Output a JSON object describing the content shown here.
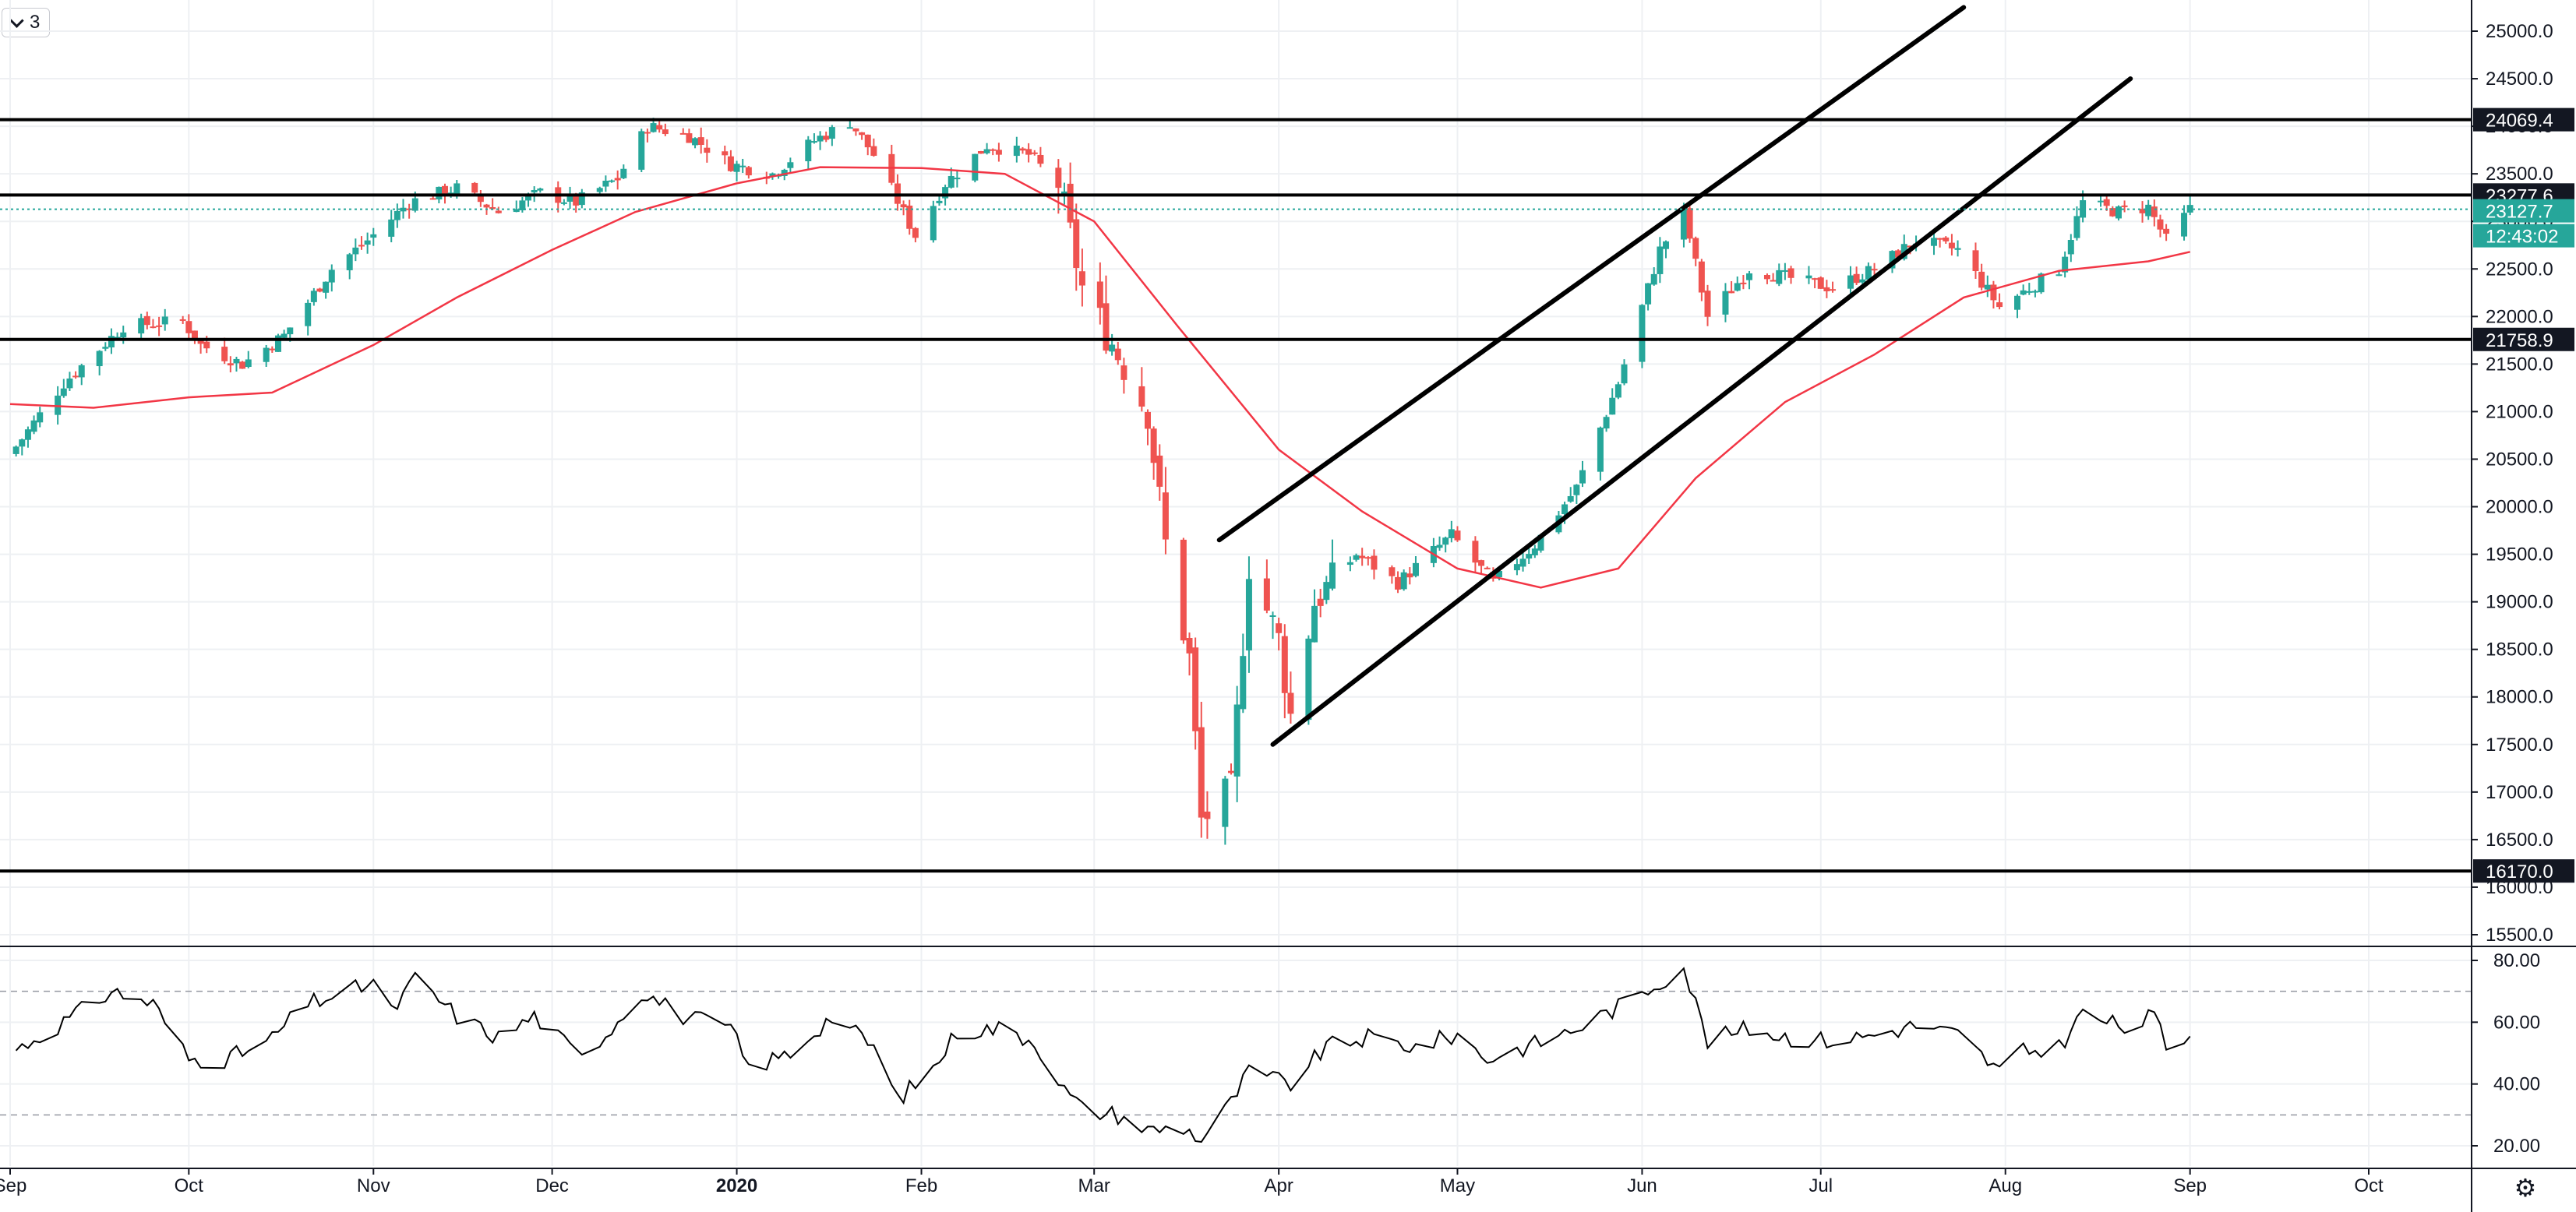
{
  "series_badge": {
    "count": "3"
  },
  "icons": {
    "collapse": "chevron-down-icon",
    "settings": "gear-icon"
  },
  "colors": {
    "up": "#26a69a",
    "down": "#ef5350",
    "ma": "#f23645",
    "rsi": "#000000",
    "current_tag": "#26a69a",
    "level_tag": "#131722"
  },
  "chart_data": [
    {
      "type": "candlestick",
      "title": "",
      "ylim": [
        15300,
        25300
      ],
      "y_ticks": [
        "25000.0",
        "24500.0",
        "24000.0",
        "23500.0",
        "23000.0",
        "22500.0",
        "22000.0",
        "21500.0",
        "21000.0",
        "20500.0",
        "20000.0",
        "19500.0",
        "19000.0",
        "18500.0",
        "18000.0",
        "17500.0",
        "17000.0",
        "16500.0",
        "16000.0",
        "15500.0"
      ],
      "x_ticks": [
        {
          "label": "Sep",
          "date": "2019-09-01"
        },
        {
          "label": "Oct",
          "date": "2019-10-01"
        },
        {
          "label": "Nov",
          "date": "2019-11-01"
        },
        {
          "label": "Dec",
          "date": "2019-12-01"
        },
        {
          "label": "2020",
          "date": "2020-01-01",
          "bold": true
        },
        {
          "label": "Feb",
          "date": "2020-02-01"
        },
        {
          "label": "Mar",
          "date": "2020-03-01"
        },
        {
          "label": "Apr",
          "date": "2020-04-01"
        },
        {
          "label": "May",
          "date": "2020-05-01"
        },
        {
          "label": "Jun",
          "date": "2020-06-01"
        },
        {
          "label": "Jul",
          "date": "2020-07-01"
        },
        {
          "label": "Aug",
          "date": "2020-08-01"
        },
        {
          "label": "Sep",
          "date": "2020-09-01"
        },
        {
          "label": "Oct",
          "date": "2020-10-01"
        }
      ],
      "price_path": [
        [
          "2019-09-01",
          20550
        ],
        [
          "2019-09-10",
          21300
        ],
        [
          "2019-09-20",
          21900
        ],
        [
          "2019-09-30",
          21950
        ],
        [
          "2019-10-03",
          21700
        ],
        [
          "2019-10-10",
          21500
        ],
        [
          "2019-10-17",
          21800
        ],
        [
          "2019-10-25",
          22500
        ],
        [
          "2019-10-31",
          22800
        ],
        [
          "2019-11-07",
          23200
        ],
        [
          "2019-11-15",
          23350
        ],
        [
          "2019-11-22",
          23100
        ],
        [
          "2019-11-29",
          23300
        ],
        [
          "2019-12-05",
          23200
        ],
        [
          "2019-12-12",
          23450
        ],
        [
          "2019-12-17",
          24000
        ],
        [
          "2019-12-24",
          23900
        ],
        [
          "2019-12-31",
          23600
        ],
        [
          "2020-01-07",
          23500
        ],
        [
          "2020-01-14",
          23850
        ],
        [
          "2020-01-20",
          24050
        ],
        [
          "2020-01-24",
          23700
        ],
        [
          "2020-01-31",
          22850
        ],
        [
          "2020-02-05",
          23400
        ],
        [
          "2020-02-12",
          23800
        ],
        [
          "2020-02-19",
          23700
        ],
        [
          "2020-02-24",
          23400
        ],
        [
          "2020-02-28",
          22300
        ],
        [
          "2020-03-05",
          21600
        ],
        [
          "2020-03-10",
          21000
        ],
        [
          "2020-03-13",
          19600
        ],
        [
          "2020-03-17",
          18400
        ],
        [
          "2020-03-19",
          16700
        ],
        [
          "2020-03-24",
          17000
        ],
        [
          "2020-03-27",
          19400
        ],
        [
          "2020-04-01",
          18600
        ],
        [
          "2020-04-03",
          17800
        ],
        [
          "2020-04-07",
          19000
        ],
        [
          "2020-04-14",
          19500
        ],
        [
          "2020-04-21",
          19200
        ],
        [
          "2020-04-30",
          19700
        ],
        [
          "2020-05-07",
          19200
        ],
        [
          "2020-05-14",
          19600
        ],
        [
          "2020-05-21",
          20200
        ],
        [
          "2020-05-28",
          21300
        ],
        [
          "2020-06-04",
          22700
        ],
        [
          "2020-06-08",
          23100
        ],
        [
          "2020-06-12",
          22000
        ],
        [
          "2020-06-19",
          22500
        ],
        [
          "2020-06-26",
          22400
        ],
        [
          "2020-07-03",
          22300
        ],
        [
          "2020-07-10",
          22500
        ],
        [
          "2020-07-17",
          22800
        ],
        [
          "2020-07-24",
          22700
        ],
        [
          "2020-07-31",
          22100
        ],
        [
          "2020-08-05",
          22300
        ],
        [
          "2020-08-10",
          22500
        ],
        [
          "2020-08-14",
          23200
        ],
        [
          "2020-08-20",
          23100
        ],
        [
          "2020-08-25",
          23150
        ],
        [
          "2020-08-28",
          22800
        ],
        [
          "2020-09-01",
          23127.7
        ]
      ],
      "moving_average": [
        [
          "2019-09-01",
          21080
        ],
        [
          "2019-09-15",
          21040
        ],
        [
          "2019-10-01",
          21150
        ],
        [
          "2019-10-15",
          21200
        ],
        [
          "2019-11-01",
          21700
        ],
        [
          "2019-11-15",
          22200
        ],
        [
          "2019-12-01",
          22700
        ],
        [
          "2019-12-15",
          23100
        ],
        [
          "2020-01-01",
          23400
        ],
        [
          "2020-01-15",
          23570
        ],
        [
          "2020-02-01",
          23560
        ],
        [
          "2020-02-15",
          23500
        ],
        [
          "2020-03-01",
          23000
        ],
        [
          "2020-03-15",
          21900
        ],
        [
          "2020-04-01",
          20600
        ],
        [
          "2020-04-15",
          19950
        ],
        [
          "2020-05-01",
          19350
        ],
        [
          "2020-05-15",
          19150
        ],
        [
          "2020-05-28",
          19350
        ],
        [
          "2020-06-10",
          20300
        ],
        [
          "2020-06-25",
          21100
        ],
        [
          "2020-07-10",
          21600
        ],
        [
          "2020-07-25",
          22200
        ],
        [
          "2020-08-10",
          22480
        ],
        [
          "2020-08-25",
          22580
        ],
        [
          "2020-09-01",
          22680
        ]
      ],
      "trend_lines": [
        {
          "name": "channel-upper",
          "from": [
            "2020-03-22",
            19650
          ],
          "to": [
            "2020-07-25",
            25250
          ]
        },
        {
          "name": "channel-lower",
          "from": [
            "2020-03-31",
            17500
          ],
          "to": [
            "2020-08-22",
            24500
          ]
        }
      ],
      "horizontal_levels": [
        {
          "value": 24069.4,
          "label": "24069.4"
        },
        {
          "value": 23277.6,
          "label": "23277.6"
        },
        {
          "value": 21758.9,
          "label": "21758.9"
        },
        {
          "value": 16170.0,
          "label": "16170.0"
        }
      ],
      "current": {
        "value": 23127.7,
        "label": "23127.7",
        "countdown": "12:43:02"
      }
    },
    {
      "type": "line",
      "title": "",
      "ylim": [
        15,
        85
      ],
      "y_ticks": [
        "80.00",
        "60.00",
        "40.00",
        "20.00"
      ],
      "reference_lines": [
        70,
        30
      ],
      "values": [
        [
          "2019-09-01",
          50
        ],
        [
          "2019-09-10",
          60
        ],
        [
          "2019-09-18",
          70
        ],
        [
          "2019-09-25",
          66
        ],
        [
          "2019-10-01",
          48
        ],
        [
          "2019-10-07",
          48
        ],
        [
          "2019-10-14",
          53
        ],
        [
          "2019-10-21",
          66
        ],
        [
          "2019-10-28",
          70
        ],
        [
          "2019-11-01",
          73
        ],
        [
          "2019-11-04",
          63
        ],
        [
          "2019-11-08",
          74
        ],
        [
          "2019-11-15",
          62
        ],
        [
          "2019-11-22",
          55
        ],
        [
          "2019-11-28",
          62
        ],
        [
          "2019-12-05",
          50
        ],
        [
          "2019-12-10",
          56
        ],
        [
          "2019-12-16",
          70
        ],
        [
          "2019-12-23",
          62
        ],
        [
          "2019-12-31",
          58
        ],
        [
          "2020-01-03",
          45
        ],
        [
          "2020-01-10",
          50
        ],
        [
          "2020-01-17",
          62
        ],
        [
          "2020-01-24",
          52
        ],
        [
          "2020-01-28",
          35
        ],
        [
          "2020-02-03",
          45
        ],
        [
          "2020-02-07",
          57
        ],
        [
          "2020-02-14",
          58
        ],
        [
          "2020-02-20",
          54
        ],
        [
          "2020-02-25",
          38
        ],
        [
          "2020-02-28",
          32
        ],
        [
          "2020-03-05",
          30
        ],
        [
          "2020-03-10",
          25
        ],
        [
          "2020-03-16",
          26
        ],
        [
          "2020-03-19",
          22
        ],
        [
          "2020-03-24",
          34
        ],
        [
          "2020-03-27",
          44
        ],
        [
          "2020-04-03",
          40
        ],
        [
          "2020-04-09",
          52
        ],
        [
          "2020-04-16",
          55
        ],
        [
          "2020-04-24",
          52
        ],
        [
          "2020-05-01",
          56
        ],
        [
          "2020-05-06",
          48
        ],
        [
          "2020-05-14",
          53
        ],
        [
          "2020-05-21",
          58
        ],
        [
          "2020-05-28",
          65
        ],
        [
          "2020-06-03",
          72
        ],
        [
          "2020-06-08",
          78
        ],
        [
          "2020-06-12",
          54
        ],
        [
          "2020-06-19",
          58
        ],
        [
          "2020-06-26",
          55
        ],
        [
          "2020-07-03",
          54
        ],
        [
          "2020-07-10",
          56
        ],
        [
          "2020-07-17",
          59
        ],
        [
          "2020-07-24",
          56
        ],
        [
          "2020-07-31",
          44
        ],
        [
          "2020-08-03",
          50
        ],
        [
          "2020-08-10",
          52
        ],
        [
          "2020-08-14",
          63
        ],
        [
          "2020-08-21",
          58
        ],
        [
          "2020-08-26",
          62
        ],
        [
          "2020-08-28",
          52
        ],
        [
          "2020-09-01",
          56
        ]
      ]
    }
  ]
}
